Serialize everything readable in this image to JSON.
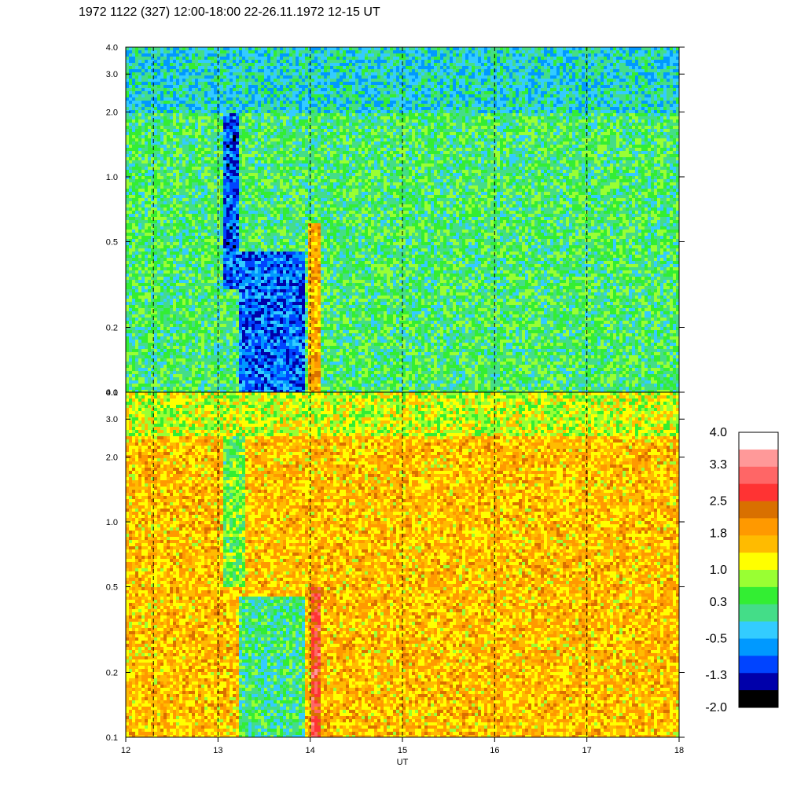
{
  "chart_data": {
    "type": "heatmap",
    "title": "1972 1122 (327) 12:00-18:00 22-26.11.1972  12-15 UT",
    "xlabel": "UT",
    "x_ticks": [
      12,
      13,
      14,
      15,
      16,
      17,
      18
    ],
    "x_range": [
      12,
      18
    ],
    "y_scale": "log",
    "y_ticks": [
      "0.1",
      "0.2",
      "0.5",
      "1.0",
      "2.0",
      "3.0",
      "4.0"
    ],
    "y_tick_values": [
      0.1,
      0.2,
      0.5,
      1.0,
      2.0,
      3.0,
      4.0
    ],
    "y_range": [
      0.1,
      4.0
    ],
    "dashed_lines_at": [
      12.3,
      13.0,
      14.0,
      15.0,
      16.0,
      17.0
    ],
    "panels": [
      {
        "name": "upper",
        "base_level": 0.3,
        "features": [
          {
            "x_from": 13.06,
            "x_to": 13.22,
            "y_from": 0.3,
            "y_to": 4.0,
            "level": -1.0
          },
          {
            "x_from": 13.23,
            "x_to": 13.95,
            "y_from": 0.1,
            "y_to": 0.45,
            "level": -0.9
          },
          {
            "x_from": 13.98,
            "x_to": 14.12,
            "y_from": 0.1,
            "y_to": 0.6,
            "level": 1.8
          },
          {
            "x_from": 12.0,
            "x_to": 18.0,
            "y_from": 2.0,
            "y_to": 4.0,
            "level": -0.2
          }
        ]
      },
      {
        "name": "lower",
        "base_level": 1.6,
        "features": [
          {
            "x_from": 13.23,
            "x_to": 13.95,
            "y_from": 0.1,
            "y_to": 0.45,
            "level": 0.2
          },
          {
            "x_from": 13.05,
            "x_to": 13.3,
            "y_from": 0.5,
            "y_to": 4.0,
            "level": 0.5
          },
          {
            "x_from": 14.0,
            "x_to": 14.12,
            "y_from": 0.1,
            "y_to": 0.5,
            "level": 2.7
          },
          {
            "x_from": 12.0,
            "x_to": 18.0,
            "y_from": 2.5,
            "y_to": 4.0,
            "level": 1.0
          }
        ]
      }
    ],
    "colorbar": {
      "ticks": [
        "4.0",
        "3.3",
        "2.5",
        "1.8",
        "1.0",
        "0.3",
        "-0.5",
        "-1.3",
        "-2.0"
      ],
      "tick_values": [
        4.0,
        3.3,
        2.5,
        1.8,
        1.0,
        0.3,
        -0.5,
        -1.3,
        -2.0
      ],
      "colors_top_to_bottom": [
        "#ffffff",
        "#ff9999",
        "#ff6666",
        "#ff3333",
        "#d97000",
        "#ff9900",
        "#ffbb00",
        "#ffff00",
        "#99ff33",
        "#33ee33",
        "#44dd88",
        "#33ccff",
        "#0099ff",
        "#0044ff",
        "#0000aa",
        "#000000"
      ]
    }
  }
}
